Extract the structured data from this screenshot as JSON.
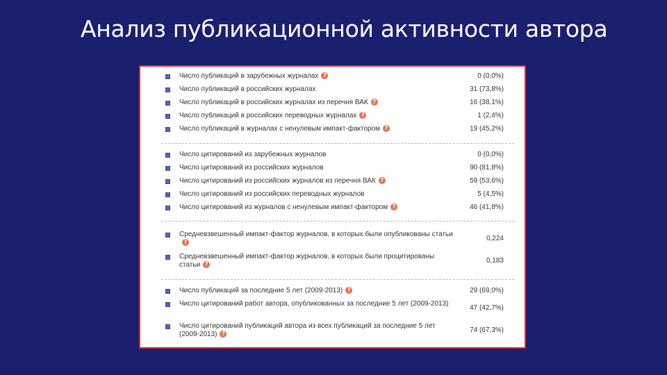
{
  "title": "Анализ публикационной активности автора",
  "help_icon": "question-circle-icon",
  "sections": [
    {
      "rows": [
        {
          "label": "Число публикаций в зарубежных журналах",
          "value": "0 (0,0%)",
          "help": true
        },
        {
          "label": "Число публикаций в российских журналах",
          "value": "31 (73,8%)",
          "help": false
        },
        {
          "label": "Число публикаций в российских журналах из перечня ВАК",
          "value": "16 (38,1%)",
          "help": true
        },
        {
          "label": "Число публикаций в российских переводных журналах",
          "value": "1 (2,4%)",
          "help": true
        },
        {
          "label": "Число публикаций в журналах с ненулевым импакт-фактором",
          "value": "19 (45,2%)",
          "help": true
        }
      ]
    },
    {
      "rows": [
        {
          "label": "Число цитирований из зарубежных журналов",
          "value": "0 (0,0%)",
          "help": false
        },
        {
          "label": "Число цитирований из российских журналов",
          "value": "90 (81,8%)",
          "help": false
        },
        {
          "label": "Число цитирований из российских журналов из перечня ВАК",
          "value": "59 (53,6%)",
          "help": true
        },
        {
          "label": "Число цитирований из российских переводных журналов",
          "value": "5 (4,5%)",
          "help": false
        },
        {
          "label": "Число цитирований из журналов с ненулевым импакт-фактором",
          "value": "46 (41,8%)",
          "help": true
        }
      ]
    },
    {
      "rows": [
        {
          "label": "Средневзвешенный импакт-фактор журналов, в которых были опубликованы статьи",
          "value": "0,224",
          "help": true
        },
        {
          "label": "Средневзвешенный импакт-фактор журналов, в которых были процитированы статьи",
          "value": "0,183",
          "help": true
        }
      ]
    },
    {
      "rows": [
        {
          "label": "Число публикаций за последние 5 лет (2009-2013)",
          "value": "29 (69,0%)",
          "help": true
        },
        {
          "label": "Число цитирований работ автора, опубликованных за последние 5 лет (2009-2013)",
          "value": "47 (42,7%)",
          "help": false
        },
        {
          "label": "Число цитирований публикаций автора из всех публикаций за последние 5 лет (2009-2013)",
          "value": "74 (67,3%)",
          "help": true
        }
      ]
    }
  ]
}
